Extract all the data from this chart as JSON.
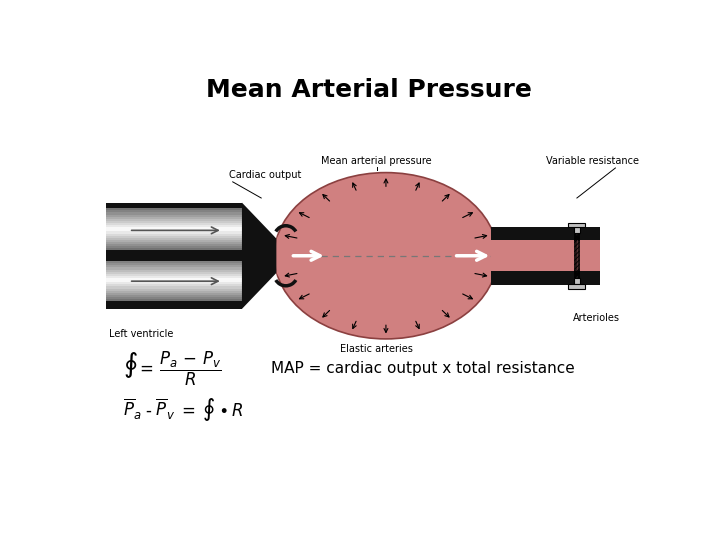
{
  "title": "Mean Arterial Pressure",
  "title_fontsize": 18,
  "title_fontweight": "bold",
  "map_text": "MAP = cardiac output x total resistance",
  "map_fontsize": 11,
  "bg_color": "#ffffff",
  "pink_color": "#d08080",
  "black_color": "#111111",
  "labels": {
    "cardiac_output": "Cardiac output",
    "mean_arterial_pressure": "Mean arterial pressure",
    "variable_resistance": "Variable resistance",
    "left_ventricle": "Left ventricle",
    "elastic_arteries": "Elastic arteries",
    "arterioles": "Arterioles"
  }
}
